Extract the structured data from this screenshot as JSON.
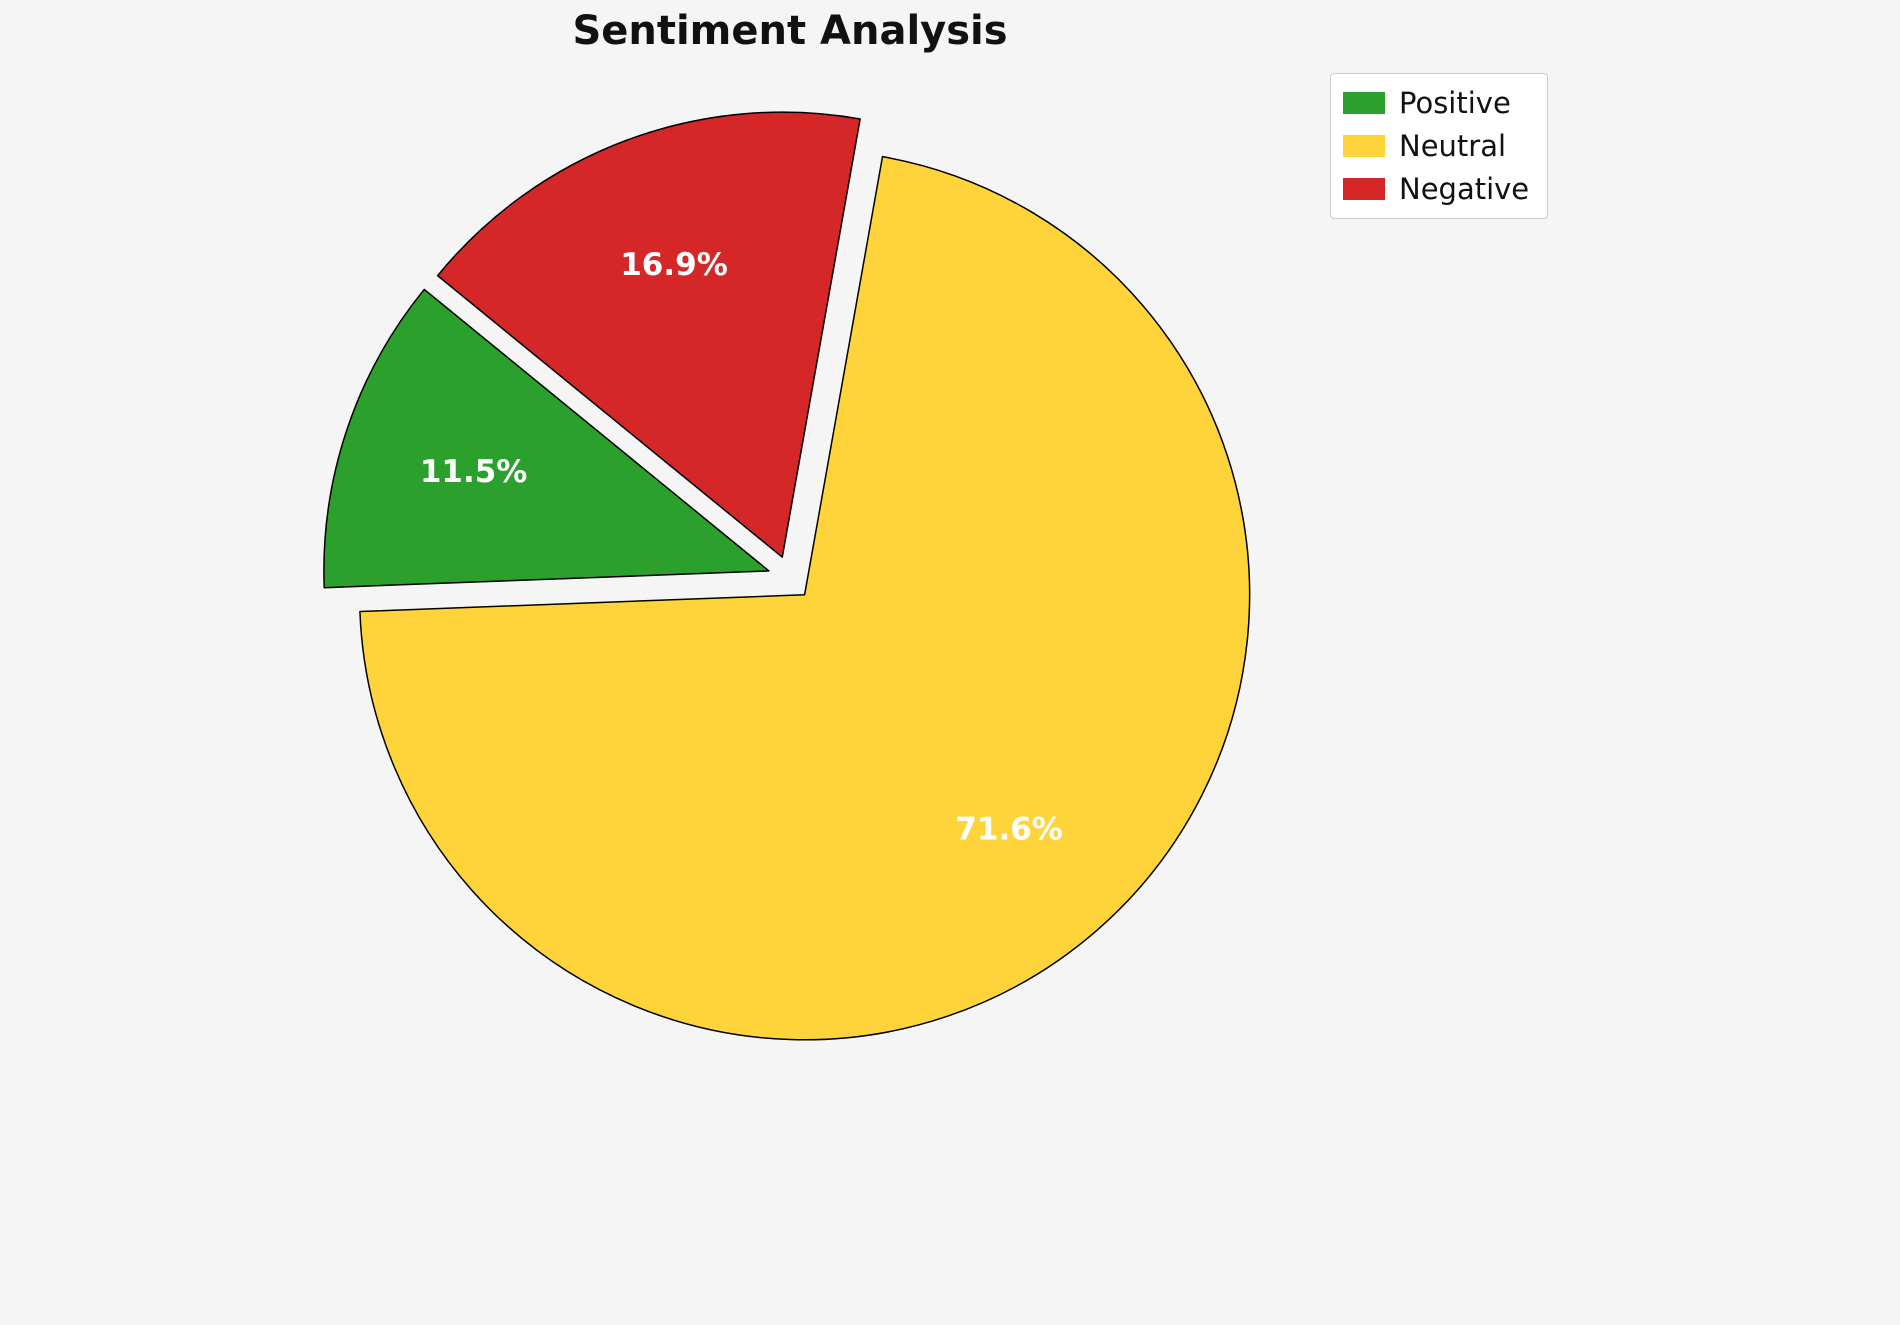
{
  "title": "Sentiment Analysis",
  "background_color": "#f5f5f5",
  "chart_data": {
    "type": "pie",
    "title": "Sentiment Analysis",
    "slices": [
      {
        "label": "Positive",
        "value": 11.5,
        "pct_label": "11.5%",
        "color": "#2ca02c",
        "explode": 0.05
      },
      {
        "label": "Neutral",
        "value": 71.6,
        "pct_label": "71.6%",
        "color": "#ffd43b",
        "explode": 0.05
      },
      {
        "label": "Negative",
        "value": 16.9,
        "pct_label": "16.9%",
        "color": "#d62728",
        "explode": 0.05
      }
    ],
    "start_angle_deg": 140.76,
    "direction": "counterclockwise",
    "edge_color": "#000000",
    "label_color": "#ffffff",
    "legend": {
      "position": "upper right",
      "entries": [
        "Positive",
        "Neutral",
        "Negative"
      ]
    }
  }
}
